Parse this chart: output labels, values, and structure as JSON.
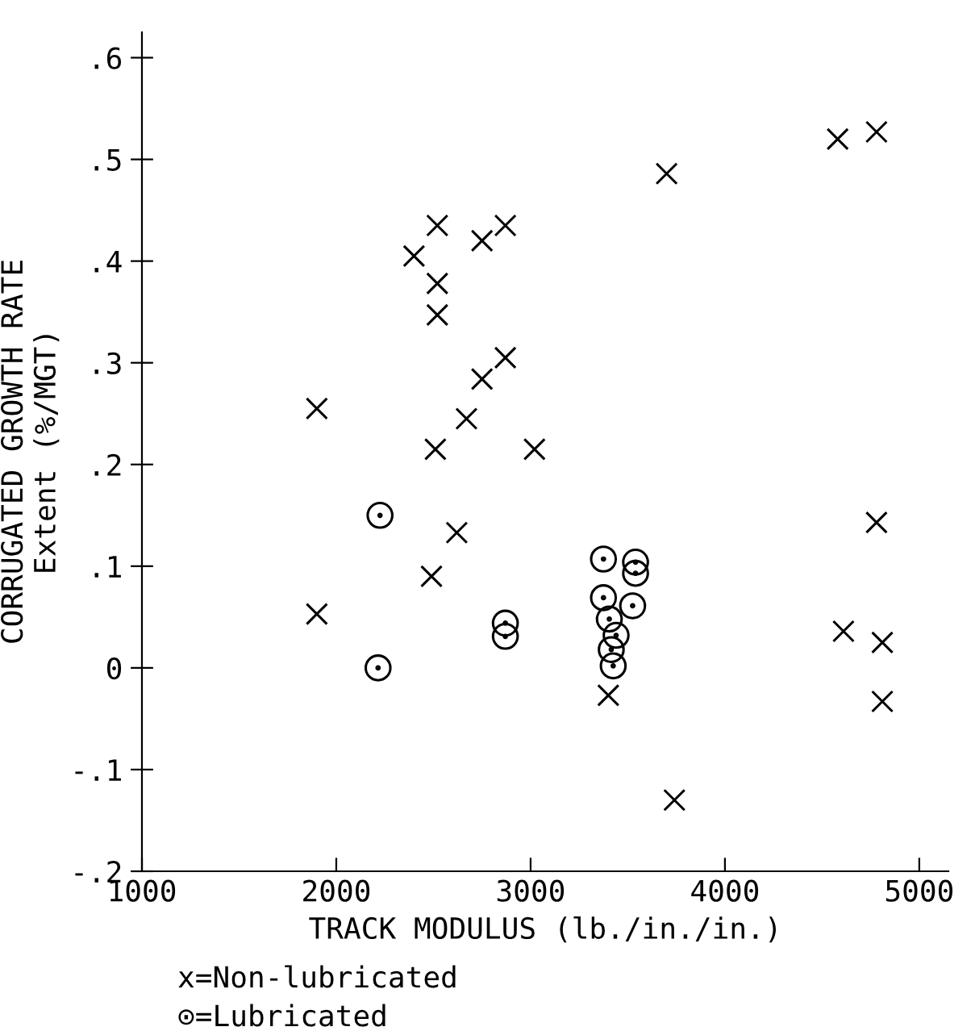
{
  "chart_data": {
    "type": "scatter",
    "xlabel": "TRACK MODULUS (lb./in./in.)",
    "ylabel": "CORRUGATED GROWTH RATE\nExtent (%/MGT)",
    "series": [
      {
        "marker": "cross",
        "color": "#000000",
        "x": [
          1900,
          2400,
          2520,
          2520,
          2520,
          2510,
          2620,
          2670,
          2750,
          2750,
          2870,
          2870,
          3020,
          3700,
          4580,
          4780,
          4780,
          1900,
          2490,
          3400,
          3740,
          4610,
          4810,
          4810
        ],
        "values": [
          0.255,
          0.405,
          0.435,
          0.378,
          0.347,
          0.215,
          0.133,
          0.245,
          0.284,
          0.42,
          0.435,
          0.305,
          0.215,
          0.486,
          0.52,
          0.527,
          0.143,
          0.053,
          0.09,
          -0.027,
          -0.13,
          0.036,
          0.025,
          -0.033
        ]
      },
      {
        "marker": "circle",
        "color": "#000000",
        "x": [
          2225,
          2215,
          2870,
          2870,
          3375,
          3375,
          3405,
          3440,
          3415,
          3425,
          3540,
          3540,
          3525
        ],
        "values": [
          0.15,
          0.0,
          0.044,
          0.031,
          0.107,
          0.069,
          0.048,
          0.032,
          0.018,
          0.002,
          0.104,
          0.093,
          0.061
        ]
      }
    ],
    "xlim": [
      1000,
      5150
    ],
    "ylim": [
      -0.2,
      0.625
    ],
    "xticks": [
      1000,
      2000,
      3000,
      4000,
      5000
    ],
    "yticks": [
      {
        "value": -0.2,
        "label": "-.2"
      },
      {
        "value": -0.1,
        "label": "-.1"
      },
      {
        "value": 0,
        "label": "0"
      },
      {
        "value": 0.1,
        "label": ".1"
      },
      {
        "value": 0.2,
        "label": ".2"
      },
      {
        "value": 0.3,
        "label": ".3"
      },
      {
        "value": 0.4,
        "label": ".4"
      },
      {
        "value": 0.5,
        "label": ".5"
      },
      {
        "value": 0.6,
        "label": ".6"
      }
    ],
    "grid": false,
    "annotations": [
      "x=Non-lubricated",
      "⊙=Lubricated"
    ]
  }
}
